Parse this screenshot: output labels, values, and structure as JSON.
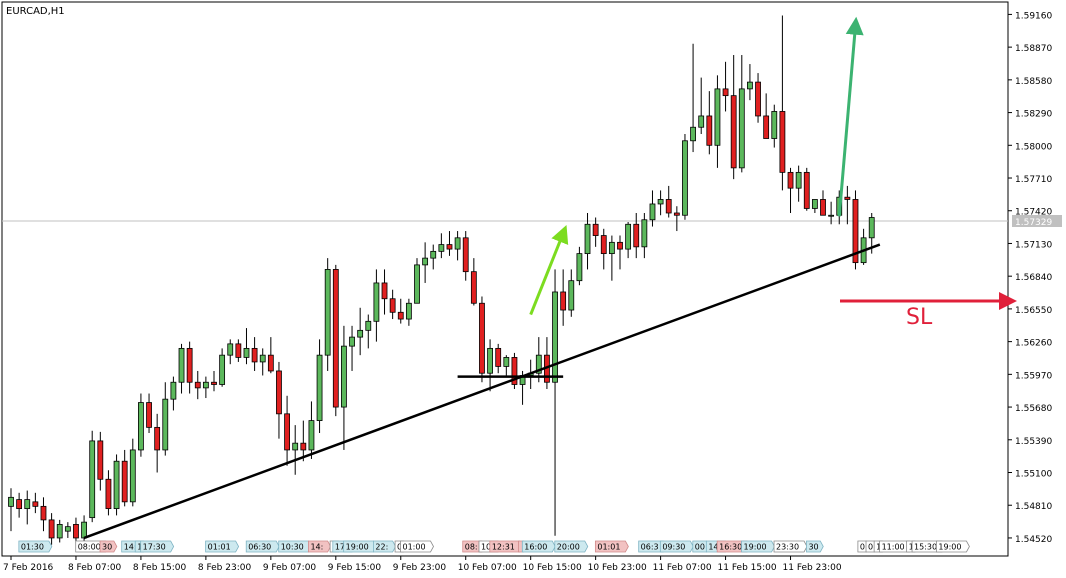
{
  "chart_data": {
    "type": "candlestick",
    "symbol_label": "EURCAD,H1",
    "sl_label": "SL",
    "current_price": 1.57329,
    "current_price_label": "1.57329",
    "ylim": [
      1.5436,
      1.5927
    ],
    "y_ticks": [
      "1.59160",
      "1.58870",
      "1.58580",
      "1.58290",
      "1.58000",
      "1.57710",
      "1.57420",
      "1.57130",
      "1.56840",
      "1.56550",
      "1.56260",
      "1.55970",
      "1.55680",
      "1.55390",
      "1.55100",
      "1.54810",
      "1.54520"
    ],
    "x_tick_labels": [
      {
        "i": 0,
        "label": "7 Feb 2016"
      },
      {
        "i": 8,
        "label": "8 Feb 07:00"
      },
      {
        "i": 16,
        "label": "8 Feb 15:00"
      },
      {
        "i": 24,
        "label": "8 Feb 23:00"
      },
      {
        "i": 32,
        "label": "9 Feb 07:00"
      },
      {
        "i": 40,
        "label": "9 Feb 15:00"
      },
      {
        "i": 48,
        "label": "9 Feb 23:00"
      },
      {
        "i": 56,
        "label": "10 Feb 07:00"
      },
      {
        "i": 64,
        "label": "10 Feb 15:00"
      },
      {
        "i": 72,
        "label": "10 Feb 23:00"
      },
      {
        "i": 80,
        "label": "11 Feb 07:00"
      },
      {
        "i": 88,
        "label": "11 Feb 15:00"
      },
      {
        "i": 96,
        "label": "11 Feb 23:00"
      }
    ],
    "news_markers": [
      {
        "i": 3,
        "label": "01:30",
        "kind": "blue"
      },
      {
        "i": 10,
        "label": "08:00",
        "kind": "white"
      },
      {
        "i": 12,
        "label": "30",
        "kind": "red"
      },
      {
        "i": 15,
        "label": "14:",
        "kind": "blue"
      },
      {
        "i": 16,
        "label": "1",
        "kind": "blue"
      },
      {
        "i": 18,
        "label": "17:30",
        "kind": "blue"
      },
      {
        "i": 26,
        "label": "01:01",
        "kind": "blue"
      },
      {
        "i": 31,
        "label": "06:30",
        "kind": "blue"
      },
      {
        "i": 35,
        "label": "10:30",
        "kind": "blue"
      },
      {
        "i": 38,
        "label": "14:",
        "kind": "red"
      },
      {
        "i": 40,
        "label": "1",
        "kind": "white"
      },
      {
        "i": 41,
        "label": "17:",
        "kind": "blue"
      },
      {
        "i": 43,
        "label": "19:00",
        "kind": "blue"
      },
      {
        "i": 46,
        "label": "22:",
        "kind": "blue"
      },
      {
        "i": 48,
        "label": "0",
        "kind": "white"
      },
      {
        "i": 50,
        "label": "01:00",
        "kind": "white"
      },
      {
        "i": 57,
        "label": "08:",
        "kind": "red"
      },
      {
        "i": 59,
        "label": "10:",
        "kind": "white"
      },
      {
        "i": 61,
        "label": "12:31",
        "kind": "red"
      },
      {
        "i": 63,
        "label": "",
        "kind": "red"
      },
      {
        "i": 65,
        "label": "16:00",
        "kind": "blue"
      },
      {
        "i": 69,
        "label": "20:00",
        "kind": "blue"
      },
      {
        "i": 74,
        "label": "01:01",
        "kind": "red"
      },
      {
        "i": 79,
        "label": "06:3",
        "kind": "blue"
      },
      {
        "i": 82,
        "label": "09:30",
        "kind": "blue"
      },
      {
        "i": 85,
        "label": "00",
        "kind": "blue"
      },
      {
        "i": 87,
        "label": "14:",
        "kind": "blue"
      },
      {
        "i": 89,
        "label": "16:30",
        "kind": "red"
      },
      {
        "i": 92,
        "label": "19:00",
        "kind": "blue"
      },
      {
        "i": 96,
        "label": "23:30",
        "kind": "white"
      },
      {
        "i": 99,
        "label": "30",
        "kind": "blue"
      },
      {
        "i": 105,
        "label": "0",
        "kind": "white"
      },
      {
        "i": 106,
        "label": "0",
        "kind": "white"
      },
      {
        "i": 107,
        "label": "1",
        "kind": "white"
      },
      {
        "i": 109,
        "label": "11:00",
        "kind": "white"
      },
      {
        "i": 111,
        "label": "1",
        "kind": "white"
      },
      {
        "i": 113,
        "label": "15:30",
        "kind": "white"
      },
      {
        "i": 116,
        "label": "19:00",
        "kind": "white"
      }
    ],
    "candles": [
      [
        1.548,
        1.5496,
        1.5458,
        1.5488
      ],
      [
        1.5486,
        1.5492,
        1.547,
        1.5478
      ],
      [
        1.5478,
        1.5494,
        1.5464,
        1.5486
      ],
      [
        1.5484,
        1.5492,
        1.5474,
        1.548
      ],
      [
        1.548,
        1.5488,
        1.5458,
        1.5468
      ],
      [
        1.5468,
        1.5474,
        1.5446,
        1.5452
      ],
      [
        1.5452,
        1.5468,
        1.5448,
        1.5464
      ],
      [
        1.5458,
        1.5466,
        1.5452,
        1.5462
      ],
      [
        1.5464,
        1.547,
        1.5448,
        1.5452
      ],
      [
        1.5452,
        1.5472,
        1.5446,
        1.5466
      ],
      [
        1.547,
        1.5547,
        1.5466,
        1.5538
      ],
      [
        1.5538,
        1.5546,
        1.5494,
        1.5504
      ],
      [
        1.5504,
        1.5512,
        1.5472,
        1.5478
      ],
      [
        1.5478,
        1.5526,
        1.5472,
        1.552
      ],
      [
        1.552,
        1.553,
        1.548,
        1.5484
      ],
      [
        1.5484,
        1.554,
        1.548,
        1.553
      ],
      [
        1.553,
        1.558,
        1.5524,
        1.5572
      ],
      [
        1.5572,
        1.558,
        1.5545,
        1.555
      ],
      [
        1.555,
        1.5562,
        1.551,
        1.553
      ],
      [
        1.553,
        1.559,
        1.5525,
        1.5575
      ],
      [
        1.5575,
        1.5595,
        1.5565,
        1.559
      ],
      [
        1.559,
        1.5624,
        1.558,
        1.562
      ],
      [
        1.562,
        1.5626,
        1.558,
        1.559
      ],
      [
        1.559,
        1.56,
        1.5575,
        1.5585
      ],
      [
        1.5585,
        1.5595,
        1.5576,
        1.559
      ],
      [
        1.559,
        1.56,
        1.5582,
        1.5588
      ],
      [
        1.5588,
        1.562,
        1.5586,
        1.5614
      ],
      [
        1.5614,
        1.5628,
        1.5606,
        1.5624
      ],
      [
        1.5624,
        1.5628,
        1.5608,
        1.5612
      ],
      [
        1.5612,
        1.5638,
        1.5606,
        1.562
      ],
      [
        1.562,
        1.563,
        1.56,
        1.5608
      ],
      [
        1.5608,
        1.562,
        1.5596,
        1.5614
      ],
      [
        1.5614,
        1.563,
        1.5598,
        1.56
      ],
      [
        1.56,
        1.5608,
        1.554,
        1.5562
      ],
      [
        1.5562,
        1.5578,
        1.5516,
        1.553
      ],
      [
        1.553,
        1.5552,
        1.5508,
        1.5536
      ],
      [
        1.5536,
        1.5556,
        1.552,
        1.553
      ],
      [
        1.553,
        1.5573,
        1.5522,
        1.5556
      ],
      [
        1.5556,
        1.5628,
        1.5545,
        1.5614
      ],
      [
        1.5614,
        1.57,
        1.56,
        1.569
      ],
      [
        1.569,
        1.5694,
        1.556,
        1.5568
      ],
      [
        1.5568,
        1.564,
        1.553,
        1.5622
      ],
      [
        1.5622,
        1.564,
        1.56,
        1.563
      ],
      [
        1.563,
        1.5656,
        1.5614,
        1.5636
      ],
      [
        1.5636,
        1.565,
        1.562,
        1.5644
      ],
      [
        1.5644,
        1.569,
        1.5626,
        1.5678
      ],
      [
        1.5678,
        1.569,
        1.565,
        1.5664
      ],
      [
        1.5664,
        1.5672,
        1.5646,
        1.5652
      ],
      [
        1.5652,
        1.5664,
        1.5642,
        1.5646
      ],
      [
        1.5646,
        1.5664,
        1.564,
        1.566
      ],
      [
        1.566,
        1.57,
        1.566,
        1.5694
      ],
      [
        1.5694,
        1.5714,
        1.5678,
        1.57
      ],
      [
        1.57,
        1.5712,
        1.569,
        1.5706
      ],
      [
        1.5706,
        1.5722,
        1.57,
        1.5712
      ],
      [
        1.5712,
        1.5724,
        1.5702,
        1.5708
      ],
      [
        1.5708,
        1.5724,
        1.5698,
        1.5718
      ],
      [
        1.5718,
        1.5724,
        1.568,
        1.5688
      ],
      [
        1.5688,
        1.57,
        1.5658,
        1.566
      ],
      [
        1.566,
        1.5666,
        1.559,
        1.5598
      ],
      [
        1.5598,
        1.5628,
        1.5582,
        1.562
      ],
      [
        1.562,
        1.5624,
        1.5598,
        1.5604
      ],
      [
        1.5604,
        1.5614,
        1.5596,
        1.5612
      ],
      [
        1.5612,
        1.5616,
        1.5584,
        1.5588
      ],
      [
        1.5588,
        1.56,
        1.557,
        1.5596
      ],
      [
        1.5596,
        1.561,
        1.5584,
        1.5598
      ],
      [
        1.5598,
        1.563,
        1.559,
        1.5614
      ],
      [
        1.5614,
        1.563,
        1.5584,
        1.559
      ],
      [
        1.559,
        1.569,
        1.5454,
        1.567
      ],
      [
        1.567,
        1.569,
        1.564,
        1.5654
      ],
      [
        1.5654,
        1.569,
        1.5648,
        1.568
      ],
      [
        1.568,
        1.571,
        1.5676,
        1.5704
      ],
      [
        1.5704,
        1.574,
        1.569,
        1.573
      ],
      [
        1.573,
        1.5736,
        1.571,
        1.572
      ],
      [
        1.572,
        1.5726,
        1.569,
        1.5704
      ],
      [
        1.5704,
        1.572,
        1.568,
        1.5714
      ],
      [
        1.5714,
        1.572,
        1.569,
        1.5708
      ],
      [
        1.5708,
        1.5732,
        1.57,
        1.573
      ],
      [
        1.573,
        1.574,
        1.57,
        1.571
      ],
      [
        1.571,
        1.574,
        1.57,
        1.5734
      ],
      [
        1.5734,
        1.576,
        1.5728,
        1.5748
      ],
      [
        1.5748,
        1.576,
        1.5738,
        1.5752
      ],
      [
        1.5752,
        1.5764,
        1.5736,
        1.574
      ],
      [
        1.574,
        1.5746,
        1.5724,
        1.5738
      ],
      [
        1.5738,
        1.581,
        1.5734,
        1.5804
      ],
      [
        1.5804,
        1.589,
        1.5794,
        1.5816
      ],
      [
        1.5816,
        1.586,
        1.581,
        1.5826
      ],
      [
        1.5826,
        1.5848,
        1.5792,
        1.58
      ],
      [
        1.58,
        1.5862,
        1.578,
        1.585
      ],
      [
        1.585,
        1.5874,
        1.583,
        1.5844
      ],
      [
        1.5844,
        1.588,
        1.577,
        1.578
      ],
      [
        1.578,
        1.588,
        1.5776,
        1.585
      ],
      [
        1.585,
        1.5872,
        1.584,
        1.5856
      ],
      [
        1.5856,
        1.5864,
        1.582,
        1.5826
      ],
      [
        1.5826,
        1.5846,
        1.581,
        1.5806
      ],
      [
        1.5806,
        1.5836,
        1.5798,
        1.583
      ],
      [
        1.583,
        1.5915,
        1.576,
        1.5776
      ],
      [
        1.5776,
        1.578,
        1.574,
        1.5762
      ],
      [
        1.5762,
        1.5782,
        1.575,
        1.5776
      ],
      [
        1.5776,
        1.578,
        1.5742,
        1.5744
      ],
      [
        1.5744,
        1.5752,
        1.574,
        1.5752
      ],
      [
        1.5752,
        1.576,
        1.574,
        1.5738
      ],
      [
        1.5738,
        1.575,
        1.573,
        1.5738
      ],
      [
        1.5738,
        1.576,
        1.573,
        1.5754
      ],
      [
        1.5754,
        1.5764,
        1.573,
        1.5752
      ],
      [
        1.5752,
        1.576,
        1.569,
        1.5696
      ],
      [
        1.5696,
        1.5726,
        1.5694,
        1.5718
      ],
      [
        1.5718,
        1.574,
        1.5704,
        1.5736
      ]
    ]
  }
}
